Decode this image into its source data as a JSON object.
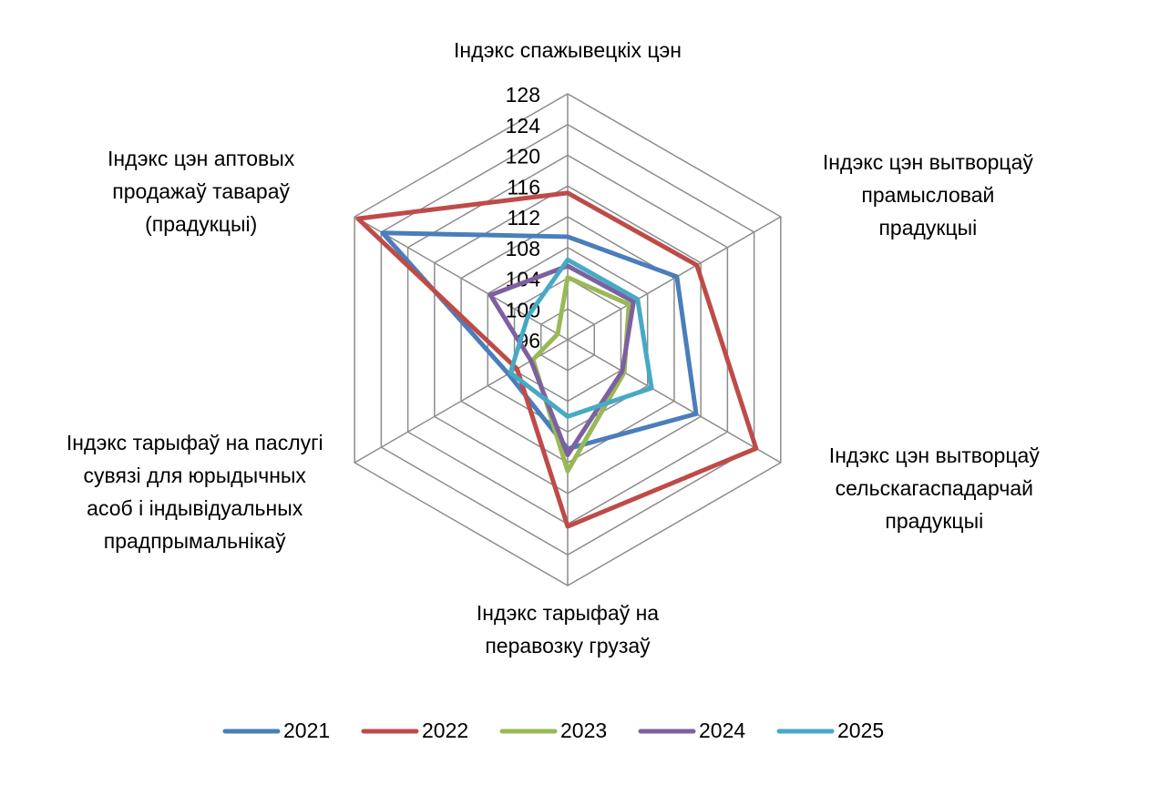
{
  "chart_data": {
    "type": "radar",
    "categories": [
      "Індэкс спажывецкіх цэн",
      "Індэкс цэн вытворцаў\nпрамысловай прадукцыі",
      "Індэкс цэн вытворцаў\nсельскагаспадарчай\nпрадукцыі",
      "Індэкс тарыфаў на\nперавозку грузаў",
      "Індэкс тарыфаў на паслугі\nсувязі для юрыдычных\nасоб і індывідуальных\nпрадпрымальнікаў",
      "Індэкс цэн аптовых\nпродажаў тавараў\n(прадукцыі)"
    ],
    "series": [
      {
        "name": "2021",
        "color": "#4a7ebb",
        "values": [
          109.4,
          112.4,
          115.3,
          110.2,
          104.9,
          123.8
        ]
      },
      {
        "name": "2022",
        "color": "#be4b48",
        "values": [
          115.1,
          115.4,
          124.3,
          120.3,
          103.6,
          127.5
        ]
      },
      {
        "name": "2023",
        "color": "#98b954",
        "values": [
          104.1,
          105.2,
          104.5,
          113.1,
          101.2,
          97.5
        ]
      },
      {
        "name": "2024",
        "color": "#7d60a0",
        "values": [
          105.6,
          105.9,
          104.2,
          111.0,
          101.5,
          107.6
        ]
      },
      {
        "name": "2025",
        "color": "#46aac5",
        "values": [
          106.4,
          106.5,
          108.6,
          106.0,
          104.6,
          102.0
        ]
      }
    ],
    "ylim": [
      96,
      128
    ],
    "yticks": [
      96,
      100,
      104,
      108,
      112,
      116,
      120,
      124,
      128
    ],
    "grid": true,
    "legend": "bottom"
  }
}
